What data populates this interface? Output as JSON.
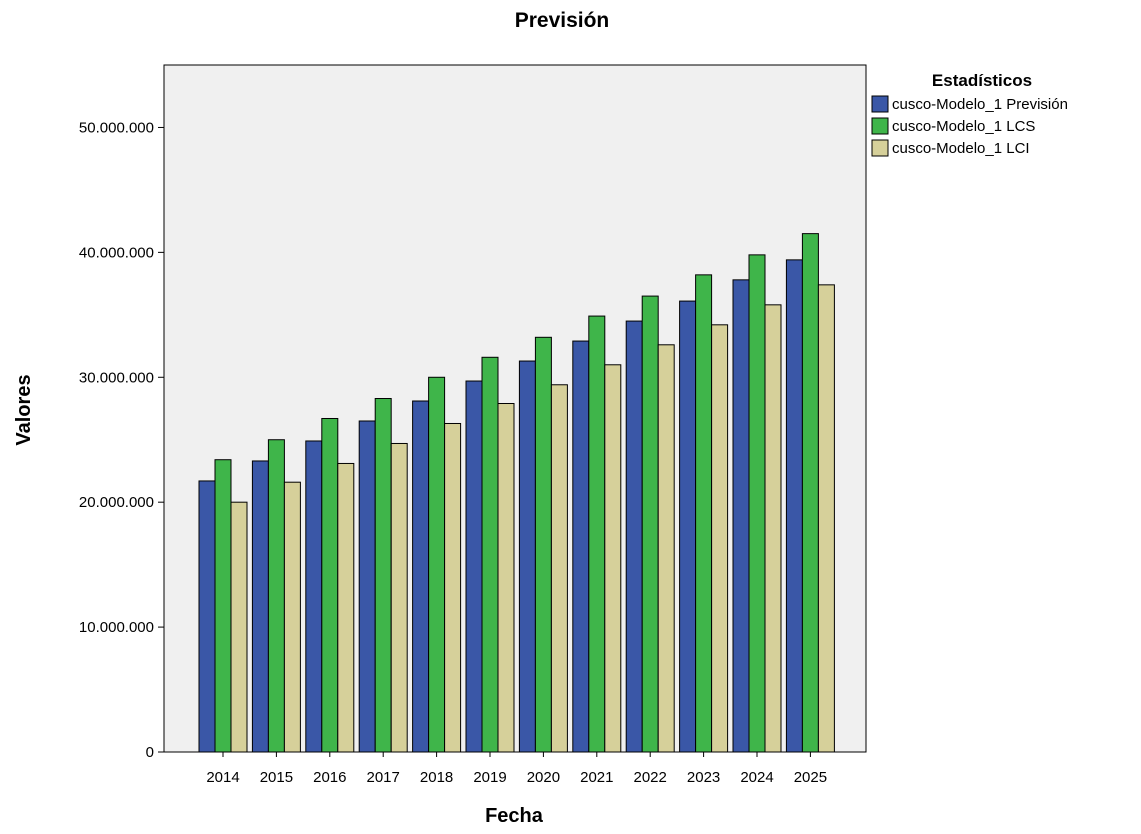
{
  "chart_data": {
    "type": "bar",
    "title": "Previsión",
    "xlabel": "Fecha",
    "ylabel": "Valores",
    "categories": [
      "2014",
      "2015",
      "2016",
      "2017",
      "2018",
      "2019",
      "2020",
      "2021",
      "2022",
      "2023",
      "2024",
      "2025"
    ],
    "y_ticks": [
      "0",
      "10.000.000",
      "20.000.000",
      "30.000.000",
      "40.000.000",
      "50.000.000"
    ],
    "ylim": [
      0,
      55000000
    ],
    "grid": false,
    "legend_title": "Estadísticos",
    "legend_position": "right",
    "series": [
      {
        "name": "cusco-Modelo_1 Previsión",
        "color": "#3a57a7",
        "values": [
          21700000,
          23300000,
          24900000,
          26500000,
          28100000,
          29700000,
          31300000,
          32900000,
          34500000,
          36100000,
          37800000,
          39400000
        ]
      },
      {
        "name": "cusco-Modelo_1 LCS",
        "color": "#3fb54a",
        "values": [
          23400000,
          25000000,
          26700000,
          28300000,
          30000000,
          31600000,
          33200000,
          34900000,
          36500000,
          38200000,
          39800000,
          41500000
        ]
      },
      {
        "name": "cusco-Modelo_1 LCI",
        "color": "#d6d09a",
        "values": [
          20000000,
          21600000,
          23100000,
          24700000,
          26300000,
          27900000,
          29400000,
          31000000,
          32600000,
          34200000,
          35800000,
          37400000
        ]
      }
    ]
  }
}
